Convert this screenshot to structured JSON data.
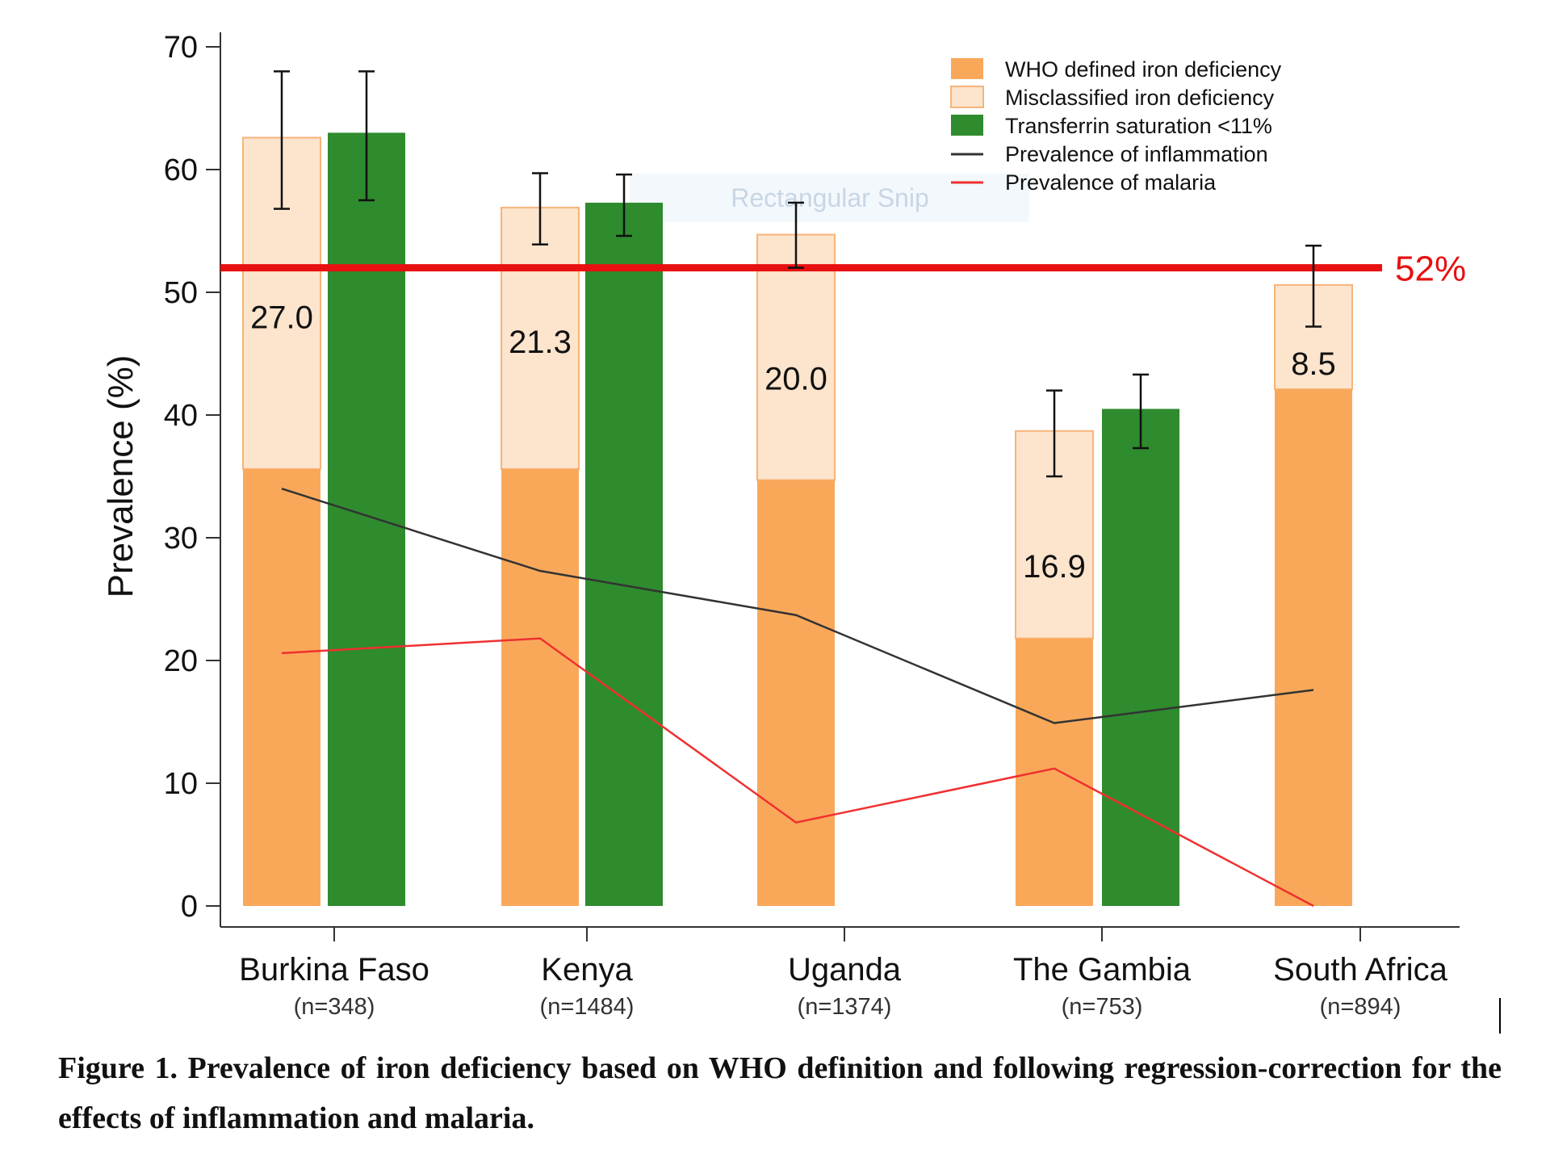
{
  "chart_data": {
    "type": "bar",
    "ylabel": "Prevalence (%)",
    "ylim": [
      0,
      70
    ],
    "yticks": [
      "0",
      "10",
      "20",
      "30",
      "40",
      "50",
      "60",
      "70"
    ],
    "grid": false,
    "legend_placement": "top-right",
    "categories": [
      "Burkina Faso",
      "Kenya",
      "Uganda",
      "The Gambia",
      "South Africa"
    ],
    "sample_sizes": [
      "(n=348)",
      "(n=1484)",
      "(n=1374)",
      "(n=753)",
      "(n=894)"
    ],
    "series": [
      {
        "name": "WHO defined iron deficiency",
        "kind": "stacked-bar-base",
        "color": "#f9a85a",
        "values": [
          35.6,
          35.6,
          34.7,
          21.8,
          42.1
        ]
      },
      {
        "name": "Misclassified iron deficiency",
        "kind": "stacked-bar-top",
        "color": "#fde4cc",
        "values": [
          27.0,
          21.3,
          20.0,
          16.9,
          8.5
        ],
        "labels": [
          "27.0",
          "21.3",
          "20.0",
          "16.9",
          "8.5"
        ],
        "error_bars": [
          [
            56.8,
            68.0
          ],
          [
            53.9,
            59.7
          ],
          [
            52.0,
            57.3
          ],
          [
            35.0,
            42.0
          ],
          [
            47.2,
            53.8
          ]
        ]
      },
      {
        "name": "Transferrin saturation <11%",
        "kind": "bar",
        "color": "#2e8b2e",
        "values": [
          63.0,
          57.3,
          null,
          40.5,
          null
        ],
        "error_bars": [
          [
            57.5,
            68.0
          ],
          [
            54.6,
            59.6
          ],
          null,
          [
            37.3,
            43.3
          ],
          null
        ]
      },
      {
        "name": "Prevalence of inflammation",
        "kind": "line",
        "color": "#333333",
        "values": [
          34.0,
          27.3,
          23.7,
          14.9,
          17.6
        ]
      },
      {
        "name": "Prevalence of malaria",
        "kind": "line",
        "color": "#f03030",
        "values": [
          20.6,
          21.8,
          6.8,
          11.2,
          0.0
        ]
      }
    ],
    "reference_line": {
      "value": 52,
      "label": "52%",
      "color": "#e81010"
    }
  },
  "overlay_text": "Rectangular Snip",
  "caption": "Figure 1. Prevalence of iron deficiency based on WHO definition and following regression-correction for the effects of inflammation and malaria."
}
